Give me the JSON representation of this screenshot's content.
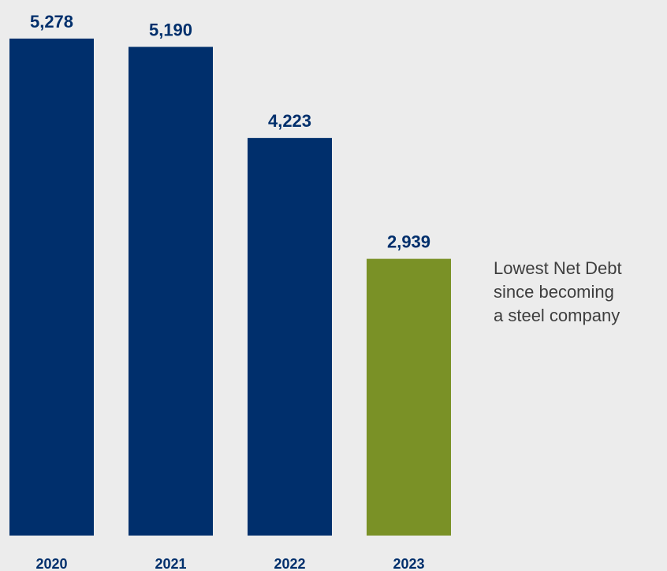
{
  "chart_data": {
    "type": "bar",
    "categories": [
      "2020",
      "2021",
      "2022",
      "2023"
    ],
    "values": [
      5278,
      5190,
      4223,
      2939
    ],
    "value_labels": [
      "5,278",
      "5,190",
      "4,223",
      "2,939"
    ],
    "title": "",
    "xlabel": "",
    "ylabel": "",
    "ylim": [
      0,
      5278
    ],
    "grid": false,
    "legend": "none",
    "bar_colors": [
      "#002f6c",
      "#002f6c",
      "#002f6c",
      "#7a9126"
    ],
    "label_color": "#002f6c"
  },
  "annotation": {
    "lines": [
      "Lowest Net Debt",
      "since becoming",
      "a steel company"
    ]
  },
  "colors": {
    "background": "#ececec",
    "annotation_text": "#3e3e3e"
  }
}
